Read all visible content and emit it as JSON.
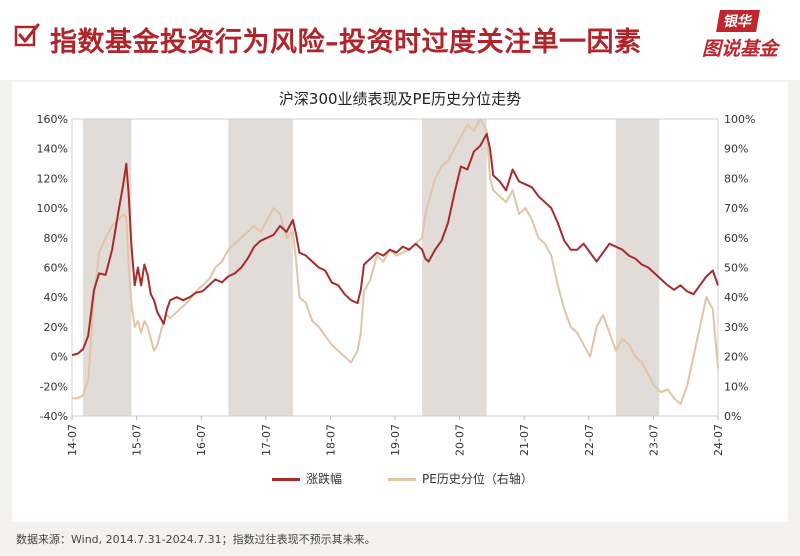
{
  "header": {
    "title": "指数基金投资行为风险–投资时过度关注单一因素",
    "logo_top": "银华",
    "logo_bottom": "图说基金"
  },
  "source_note": "数据来源：Wind, 2014.7.31-2024.7.31；指数过往表现不预示其未来。",
  "colors": {
    "series_main": "#a82a2a",
    "series_pe": "#e2c4a6",
    "shade": "#e1dcd8",
    "brand": "#b0242b"
  },
  "chart_data": {
    "type": "line",
    "title": "沪深300业绩表现及PE历史分位走势",
    "x_ticks": [
      "14-07",
      "15-07",
      "16-07",
      "17-07",
      "18-07",
      "19-07",
      "20-07",
      "21-07",
      "22-07",
      "23-07",
      "24-07"
    ],
    "y_left": {
      "ticks": [
        "-40%",
        "-20%",
        "0%",
        "20%",
        "40%",
        "60%",
        "80%",
        "100%",
        "120%",
        "140%",
        "160%"
      ],
      "range": [
        -40,
        160
      ]
    },
    "y_right": {
      "ticks": [
        "0%",
        "10%",
        "20%",
        "30%",
        "40%",
        "50%",
        "60%",
        "70%",
        "80%",
        "90%",
        "100%"
      ],
      "range": [
        0,
        100
      ]
    },
    "shaded_periods": [
      [
        2014.75,
        2015.5
      ],
      [
        2017.0,
        2018.0
      ],
      [
        2020.0,
        2021.0
      ],
      [
        2023.0,
        2023.67
      ]
    ],
    "grid": false,
    "legend_position": "bottom",
    "series": [
      {
        "name": "涨跌幅",
        "axis": "left",
        "x": [
          2014.58,
          2014.67,
          2014.75,
          2014.83,
          2014.92,
          2015.0,
          2015.1,
          2015.2,
          2015.3,
          2015.37,
          2015.42,
          2015.46,
          2015.5,
          2015.55,
          2015.6,
          2015.65,
          2015.7,
          2015.75,
          2015.8,
          2015.85,
          2015.9,
          2015.95,
          2016.0,
          2016.05,
          2016.1,
          2016.2,
          2016.3,
          2016.4,
          2016.5,
          2016.6,
          2016.7,
          2016.8,
          2016.9,
          2017.0,
          2017.1,
          2017.2,
          2017.3,
          2017.4,
          2017.5,
          2017.6,
          2017.7,
          2017.8,
          2017.9,
          2018.0,
          2018.05,
          2018.1,
          2018.2,
          2018.3,
          2018.4,
          2018.5,
          2018.6,
          2018.7,
          2018.8,
          2018.9,
          2019.0,
          2019.05,
          2019.1,
          2019.2,
          2019.3,
          2019.4,
          2019.5,
          2019.6,
          2019.7,
          2019.8,
          2019.9,
          2020.0,
          2020.05,
          2020.1,
          2020.2,
          2020.3,
          2020.4,
          2020.5,
          2020.6,
          2020.7,
          2020.8,
          2020.9,
          2021.0,
          2021.05,
          2021.1,
          2021.2,
          2021.3,
          2021.4,
          2021.5,
          2021.6,
          2021.7,
          2021.8,
          2021.9,
          2022.0,
          2022.1,
          2022.2,
          2022.3,
          2022.4,
          2022.5,
          2022.6,
          2022.7,
          2022.8,
          2022.9,
          2023.0,
          2023.1,
          2023.2,
          2023.3,
          2023.4,
          2023.5,
          2023.6,
          2023.7,
          2023.8,
          2023.9,
          2024.0,
          2024.1,
          2024.2,
          2024.3,
          2024.4,
          2024.5,
          2024.58
        ],
        "values": [
          1,
          2,
          5,
          14,
          45,
          56,
          55,
          72,
          98,
          115,
          130,
          108,
          75,
          48,
          60,
          48,
          62,
          55,
          42,
          38,
          30,
          26,
          22,
          32,
          38,
          40,
          38,
          40,
          43,
          44,
          48,
          52,
          50,
          54,
          56,
          60,
          66,
          74,
          78,
          80,
          82,
          88,
          84,
          92,
          82,
          70,
          68,
          64,
          60,
          58,
          50,
          48,
          42,
          38,
          36,
          45,
          62,
          66,
          70,
          68,
          72,
          70,
          74,
          72,
          76,
          72,
          66,
          64,
          72,
          78,
          90,
          110,
          128,
          126,
          138,
          142,
          150,
          140,
          122,
          118,
          112,
          126,
          118,
          116,
          114,
          108,
          104,
          100,
          90,
          78,
          72,
          72,
          76,
          70,
          64,
          70,
          76,
          74,
          72,
          68,
          66,
          62,
          60,
          56,
          52,
          48,
          45,
          48,
          44,
          42,
          48,
          54,
          58,
          48
        ]
      },
      {
        "name": "PE历史分位（右轴）",
        "axis": "right",
        "x": [
          2014.58,
          2014.67,
          2014.75,
          2014.83,
          2014.92,
          2015.0,
          2015.1,
          2015.2,
          2015.3,
          2015.37,
          2015.42,
          2015.46,
          2015.5,
          2015.55,
          2015.6,
          2015.65,
          2015.7,
          2015.75,
          2015.8,
          2015.85,
          2015.9,
          2015.95,
          2016.0,
          2016.05,
          2016.1,
          2016.2,
          2016.3,
          2016.4,
          2016.5,
          2016.6,
          2016.7,
          2016.8,
          2016.9,
          2017.0,
          2017.1,
          2017.2,
          2017.3,
          2017.4,
          2017.5,
          2017.6,
          2017.7,
          2017.8,
          2017.9,
          2018.0,
          2018.05,
          2018.1,
          2018.2,
          2018.3,
          2018.4,
          2018.5,
          2018.6,
          2018.7,
          2018.8,
          2018.9,
          2019.0,
          2019.05,
          2019.1,
          2019.2,
          2019.3,
          2019.4,
          2019.5,
          2019.6,
          2019.7,
          2019.8,
          2019.9,
          2020.0,
          2020.05,
          2020.1,
          2020.2,
          2020.3,
          2020.4,
          2020.5,
          2020.6,
          2020.7,
          2020.8,
          2020.9,
          2021.0,
          2021.05,
          2021.1,
          2021.2,
          2021.3,
          2021.4,
          2021.5,
          2021.6,
          2021.7,
          2021.8,
          2021.9,
          2022.0,
          2022.1,
          2022.2,
          2022.3,
          2022.4,
          2022.5,
          2022.6,
          2022.7,
          2022.8,
          2022.9,
          2023.0,
          2023.1,
          2023.2,
          2023.3,
          2023.4,
          2023.5,
          2023.6,
          2023.7,
          2023.8,
          2023.9,
          2024.0,
          2024.1,
          2024.2,
          2024.3,
          2024.4,
          2024.5,
          2024.58
        ],
        "values": [
          6,
          6,
          7,
          12,
          40,
          55,
          60,
          64,
          66,
          68,
          67,
          50,
          38,
          30,
          32,
          28,
          32,
          30,
          26,
          22,
          24,
          28,
          32,
          34,
          33,
          35,
          37,
          39,
          42,
          44,
          46,
          50,
          52,
          56,
          58,
          60,
          62,
          64,
          62,
          66,
          70,
          68,
          60,
          62,
          52,
          40,
          38,
          32,
          30,
          27,
          24,
          22,
          20,
          18,
          22,
          28,
          42,
          46,
          54,
          52,
          56,
          54,
          55,
          56,
          58,
          60,
          68,
          72,
          80,
          84,
          86,
          90,
          94,
          98,
          96,
          100,
          96,
          80,
          76,
          74,
          72,
          76,
          68,
          70,
          66,
          60,
          58,
          54,
          44,
          36,
          30,
          28,
          24,
          20,
          30,
          34,
          28,
          22,
          26,
          24,
          20,
          18,
          14,
          10,
          8,
          9,
          6,
          4,
          10,
          20,
          30,
          40,
          36,
          16
        ]
      }
    ]
  }
}
